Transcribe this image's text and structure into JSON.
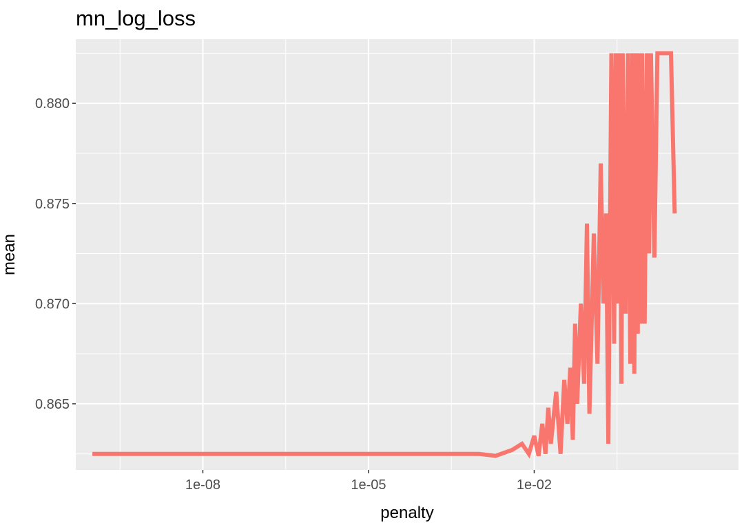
{
  "chart_data": {
    "type": "line",
    "title": "mn_log_loss",
    "xlabel": "penalty",
    "ylabel": "mean",
    "x_scale": "log10",
    "xlim": [
      5e-11,
      50
    ],
    "ylim": [
      0.8617,
      0.8832
    ],
    "x_ticks": [
      {
        "value": 1e-08,
        "label": "1e-08"
      },
      {
        "value": 1e-05,
        "label": "1e-05"
      },
      {
        "value": 0.01,
        "label": "1e-02"
      }
    ],
    "y_ticks": [
      {
        "value": 0.865,
        "label": "0.865"
      },
      {
        "value": 0.87,
        "label": "0.870"
      },
      {
        "value": 0.875,
        "label": "0.875"
      },
      {
        "value": 0.88,
        "label": "0.880"
      }
    ],
    "grid": true,
    "line_color": "#F8766D",
    "panel_color": "#EBEBEB",
    "grid_color": "#FFFFFF",
    "series": [
      {
        "x": [
          1e-10,
          1e-09,
          1e-08,
          1e-07,
          1e-06,
          1e-05,
          0.0001,
          0.001,
          0.002,
          0.004,
          0.006,
          0.008,
          0.01,
          0.012,
          0.014,
          0.016,
          0.018,
          0.02,
          0.025,
          0.03,
          0.035,
          0.04,
          0.045,
          0.05,
          0.055,
          0.06,
          0.07,
          0.08,
          0.09,
          0.1,
          0.12,
          0.14,
          0.16,
          0.18,
          0.2,
          0.22,
          0.25,
          0.28,
          0.3,
          0.32,
          0.35,
          0.38,
          0.4,
          0.45,
          0.5,
          0.55,
          0.6,
          0.65,
          0.7,
          0.75,
          0.8,
          0.85,
          0.9,
          1.0,
          1.1,
          1.2,
          1.3,
          1.5,
          1.7,
          2.0,
          2.3,
          2.6,
          3.0,
          3.5
        ],
        "y": [
          0.8625,
          0.8625,
          0.8625,
          0.8625,
          0.8625,
          0.8625,
          0.8625,
          0.8625,
          0.8624,
          0.8627,
          0.863,
          0.8625,
          0.8634,
          0.8624,
          0.864,
          0.8625,
          0.8648,
          0.863,
          0.8656,
          0.8625,
          0.8662,
          0.864,
          0.8668,
          0.8632,
          0.869,
          0.865,
          0.87,
          0.866,
          0.874,
          0.8645,
          0.8735,
          0.867,
          0.877,
          0.87,
          0.8745,
          0.863,
          0.8825,
          0.868,
          0.8825,
          0.87,
          0.8825,
          0.866,
          0.8825,
          0.8695,
          0.8825,
          0.867,
          0.8825,
          0.8665,
          0.8825,
          0.8685,
          0.8825,
          0.869,
          0.8825,
          0.869,
          0.8825,
          0.8725,
          0.8825,
          0.8723,
          0.8825,
          0.8825,
          0.8825,
          0.8825,
          0.8825,
          0.8745
        ]
      }
    ]
  }
}
